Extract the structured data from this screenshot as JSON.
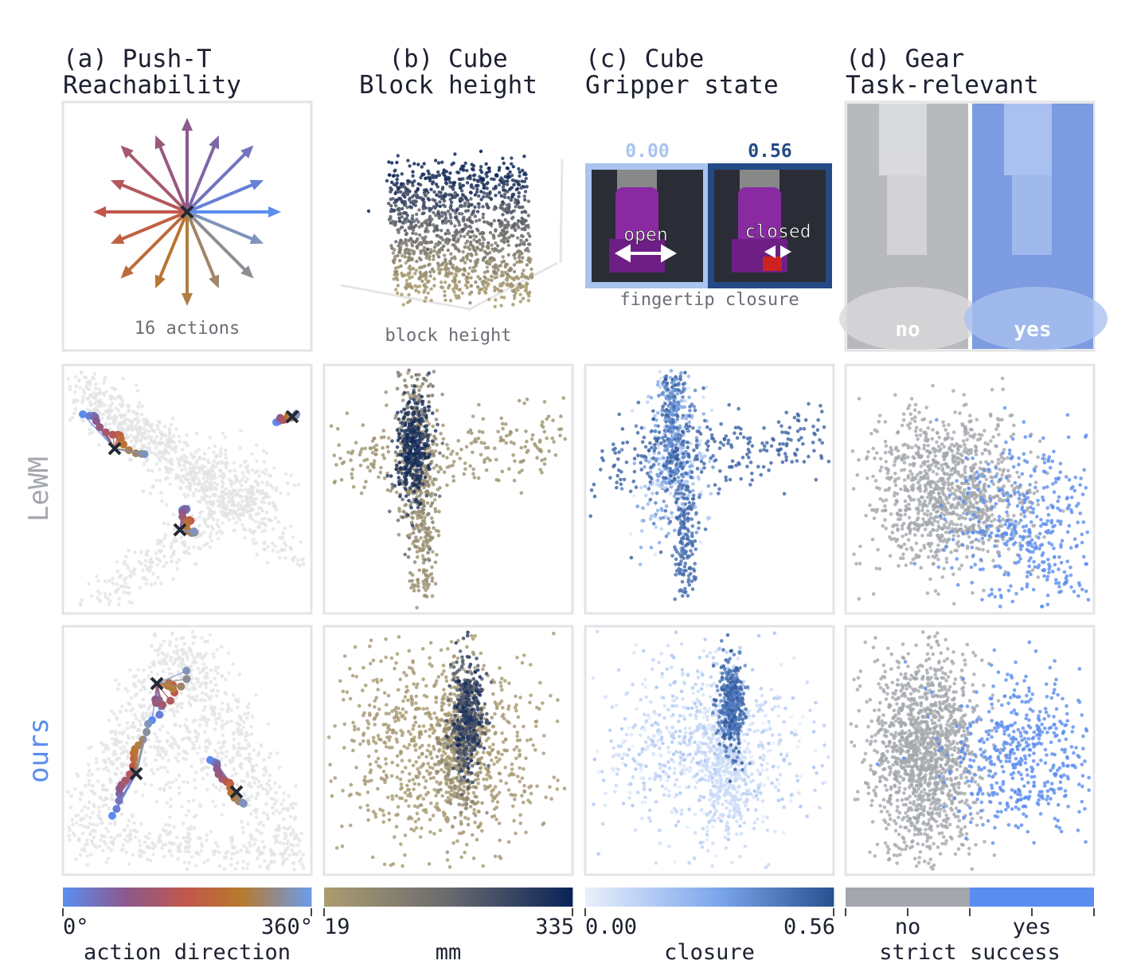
{
  "columns": [
    {
      "title": [
        "(a) Push-T",
        "Reachability"
      ],
      "annotations": [
        "16 actions"
      ]
    },
    {
      "title": [
        "(b) Cube",
        "Block height"
      ],
      "annotations": [
        "block height"
      ]
    },
    {
      "title": [
        "(c) Cube",
        "Gripper state"
      ],
      "annotations": [
        "0.00",
        "0.56",
        "open",
        "closed",
        "fingertip closure"
      ]
    },
    {
      "title": [
        "(d) Gear",
        "Task-relevant"
      ],
      "annotations": [
        "no",
        "yes"
      ]
    }
  ],
  "rows": [
    "LeWM",
    "ours"
  ],
  "colorbars": [
    {
      "ticks": [
        {
          "value": 0,
          "label": "0°"
        },
        {
          "value": 360,
          "label": "360°"
        }
      ],
      "label": "action direction"
    },
    {
      "ticks": [
        19,
        335
      ],
      "label": "mm"
    },
    {
      "ticks": [
        {
          "value": 0,
          "label": "0.00"
        },
        {
          "value": 0.56,
          "label": "0.56"
        }
      ],
      "label": "closure"
    },
    {
      "categories": [
        "no",
        "yes"
      ],
      "label": "strict success",
      "colors": [
        "#a4a7ad",
        "#5b8def"
      ]
    }
  ]
}
